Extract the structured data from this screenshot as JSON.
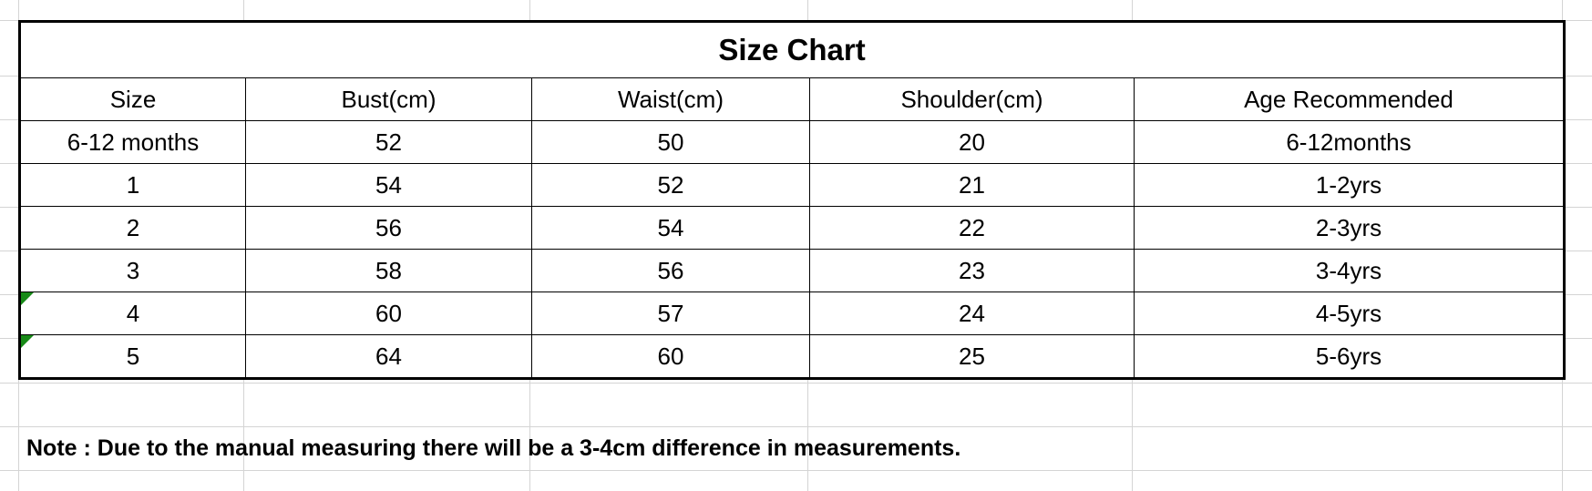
{
  "title": "Size Chart",
  "columns": [
    "Size",
    "Bust(cm)",
    "Waist(cm)",
    "Shoulder(cm)",
    "Age Recommended"
  ],
  "rows": [
    [
      "6-12 months",
      "52",
      "50",
      "20",
      "6-12months"
    ],
    [
      "1",
      "54",
      "52",
      "21",
      "1-2yrs"
    ],
    [
      "2",
      "56",
      "54",
      "22",
      "2-3yrs"
    ],
    [
      "3",
      "58",
      "56",
      "23",
      "3-4yrs"
    ],
    [
      "4",
      "60",
      "57",
      "24",
      "4-5yrs"
    ],
    [
      "5",
      "64",
      "60",
      "25",
      "5-6yrs"
    ]
  ],
  "flagged_rows": [
    4,
    5
  ],
  "flag_color": "#188a18",
  "note": "Note : Due to the manual measuring there will be a 3-4cm difference in measurements."
}
